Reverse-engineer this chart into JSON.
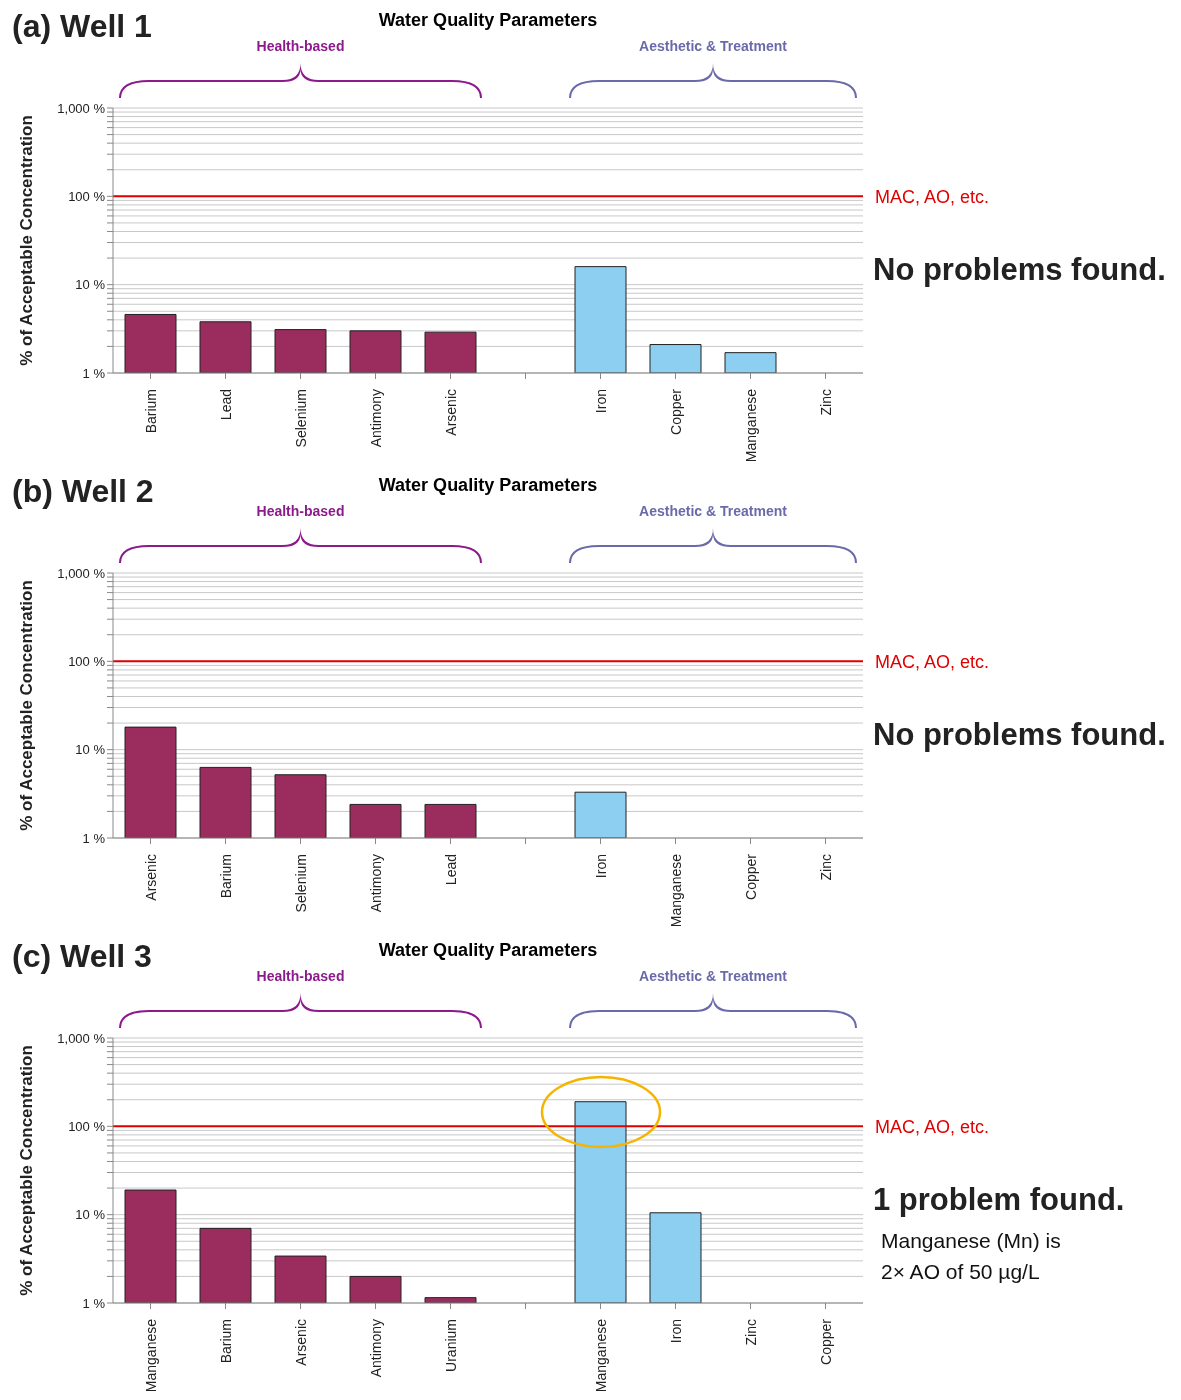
{
  "chart_data": [
    {
      "type": "bar",
      "title": "Water Quality Parameters",
      "ylabel": "% of Acceptable Concentration",
      "log": true,
      "grid": "y",
      "ylim": [
        1,
        1000
      ],
      "yticks": [
        {
          "value": 1,
          "label": "1 %"
        },
        {
          "value": 2,
          "label": null
        },
        {
          "value": 3,
          "label": null
        },
        {
          "value": 4,
          "label": null
        },
        {
          "value": 5,
          "label": null
        },
        {
          "value": 6,
          "label": null
        },
        {
          "value": 7,
          "label": null
        },
        {
          "value": 8,
          "label": null
        },
        {
          "value": 9,
          "label": null
        },
        {
          "value": 10,
          "label": "10 %"
        },
        {
          "value": 20,
          "label": null
        },
        {
          "value": 30,
          "label": null
        },
        {
          "value": 40,
          "label": null
        },
        {
          "value": 50,
          "label": null
        },
        {
          "value": 60,
          "label": null
        },
        {
          "value": 70,
          "label": null
        },
        {
          "value": 80,
          "label": null
        },
        {
          "value": 90,
          "label": null
        },
        {
          "value": 100,
          "label": "100 %"
        },
        {
          "value": 200,
          "label": null
        },
        {
          "value": 300,
          "label": null
        },
        {
          "value": 400,
          "label": null
        },
        {
          "value": 500,
          "label": null
        },
        {
          "value": 600,
          "label": null
        },
        {
          "value": 700,
          "label": null
        },
        {
          "value": 800,
          "label": null
        },
        {
          "value": 900,
          "label": null
        },
        {
          "value": 1000,
          "label": "1,000 %"
        }
      ],
      "categories": [
        "Barium",
        "Lead",
        "Selenium",
        "Antimony",
        "Arsenic",
        null,
        "Iron",
        "Copper",
        "Manganese",
        "Zinc"
      ],
      "values": [
        4.6,
        3.8,
        3.1,
        3.0,
        2.9,
        null,
        16,
        2.1,
        1.7,
        1.0
      ],
      "colors": [
        "#9b2c5e",
        "#9b2c5e",
        "#9b2c5e",
        "#9b2c5e",
        "#9b2c5e",
        "#9b2c5e",
        "#8ccff0",
        "#8ccff0",
        "#8ccff0",
        "#8ccff0"
      ],
      "ref_lines": [
        {
          "axis": "y",
          "value": 100,
          "label": "MAC, AO, etc.",
          "color": "#e00000"
        }
      ],
      "annotations": [
        "(a) Well 1",
        "Health-based",
        "Aesthetic & Treatment",
        "No problems found."
      ]
    },
    {
      "type": "bar",
      "title": "Water Quality Parameters",
      "ylabel": "% of Acceptable Concentration",
      "log": true,
      "grid": "y",
      "ylim": [
        1,
        1000
      ],
      "yticks": [
        {
          "value": 1,
          "label": "1 %"
        },
        {
          "value": 2,
          "label": null
        },
        {
          "value": 3,
          "label": null
        },
        {
          "value": 4,
          "label": null
        },
        {
          "value": 5,
          "label": null
        },
        {
          "value": 6,
          "label": null
        },
        {
          "value": 7,
          "label": null
        },
        {
          "value": 8,
          "label": null
        },
        {
          "value": 9,
          "label": null
        },
        {
          "value": 10,
          "label": "10 %"
        },
        {
          "value": 20,
          "label": null
        },
        {
          "value": 30,
          "label": null
        },
        {
          "value": 40,
          "label": null
        },
        {
          "value": 50,
          "label": null
        },
        {
          "value": 60,
          "label": null
        },
        {
          "value": 70,
          "label": null
        },
        {
          "value": 80,
          "label": null
        },
        {
          "value": 90,
          "label": null
        },
        {
          "value": 100,
          "label": "100 %"
        },
        {
          "value": 200,
          "label": null
        },
        {
          "value": 300,
          "label": null
        },
        {
          "value": 400,
          "label": null
        },
        {
          "value": 500,
          "label": null
        },
        {
          "value": 600,
          "label": null
        },
        {
          "value": 700,
          "label": null
        },
        {
          "value": 800,
          "label": null
        },
        {
          "value": 900,
          "label": null
        },
        {
          "value": 1000,
          "label": "1,000 %"
        }
      ],
      "categories": [
        "Arsenic",
        "Barium",
        "Selenium",
        "Antimony",
        "Lead",
        null,
        "Iron",
        "Manganese",
        "Copper",
        "Zinc"
      ],
      "values": [
        18,
        6.3,
        5.2,
        2.4,
        2.4,
        null,
        3.3,
        1.0,
        1.0,
        1.0
      ],
      "colors": [
        "#9b2c5e",
        "#9b2c5e",
        "#9b2c5e",
        "#9b2c5e",
        "#9b2c5e",
        "#9b2c5e",
        "#8ccff0",
        "#8ccff0",
        "#8ccff0",
        "#8ccff0"
      ],
      "ref_lines": [
        {
          "axis": "y",
          "value": 100,
          "label": "MAC, AO, etc.",
          "color": "#e00000"
        }
      ],
      "annotations": [
        "(b) Well 2",
        "Health-based",
        "Aesthetic & Treatment",
        "No problems found."
      ]
    },
    {
      "type": "bar",
      "title": "Water Quality Parameters",
      "ylabel": "% of Acceptable Concentration",
      "log": true,
      "grid": "y",
      "ylim": [
        1,
        1000
      ],
      "yticks": [
        {
          "value": 1,
          "label": "1 %"
        },
        {
          "value": 2,
          "label": null
        },
        {
          "value": 3,
          "label": null
        },
        {
          "value": 4,
          "label": null
        },
        {
          "value": 5,
          "label": null
        },
        {
          "value": 6,
          "label": null
        },
        {
          "value": 7,
          "label": null
        },
        {
          "value": 8,
          "label": null
        },
        {
          "value": 9,
          "label": null
        },
        {
          "value": 10,
          "label": "10 %"
        },
        {
          "value": 20,
          "label": null
        },
        {
          "value": 30,
          "label": null
        },
        {
          "value": 40,
          "label": null
        },
        {
          "value": 50,
          "label": null
        },
        {
          "value": 60,
          "label": null
        },
        {
          "value": 70,
          "label": null
        },
        {
          "value": 80,
          "label": null
        },
        {
          "value": 90,
          "label": null
        },
        {
          "value": 100,
          "label": "100 %"
        },
        {
          "value": 200,
          "label": null
        },
        {
          "value": 300,
          "label": null
        },
        {
          "value": 400,
          "label": null
        },
        {
          "value": 500,
          "label": null
        },
        {
          "value": 600,
          "label": null
        },
        {
          "value": 700,
          "label": null
        },
        {
          "value": 800,
          "label": null
        },
        {
          "value": 900,
          "label": null
        },
        {
          "value": 1000,
          "label": "1,000 %"
        }
      ],
      "categories": [
        "Manganese",
        "Barium",
        "Arsenic",
        "Antimony",
        "Uranium",
        null,
        "Manganese",
        "Iron",
        "Zinc",
        "Copper"
      ],
      "values": [
        19,
        7.0,
        3.4,
        2.0,
        1.15,
        null,
        190,
        10.5,
        1.0,
        1.0
      ],
      "colors": [
        "#9b2c5e",
        "#9b2c5e",
        "#9b2c5e",
        "#9b2c5e",
        "#9b2c5e",
        "#9b2c5e",
        "#8ccff0",
        "#8ccff0",
        "#8ccff0",
        "#8ccff0"
      ],
      "ref_lines": [
        {
          "axis": "y",
          "value": 100,
          "label": "MAC, AO, etc.",
          "color": "#e00000"
        }
      ],
      "annotations": [
        "(c) Well 3",
        "Health-based",
        "Aesthetic & Treatment",
        "1 problem found.",
        "Manganese (Mn) is 2× AO of 50 µg/L"
      ]
    }
  ]
}
